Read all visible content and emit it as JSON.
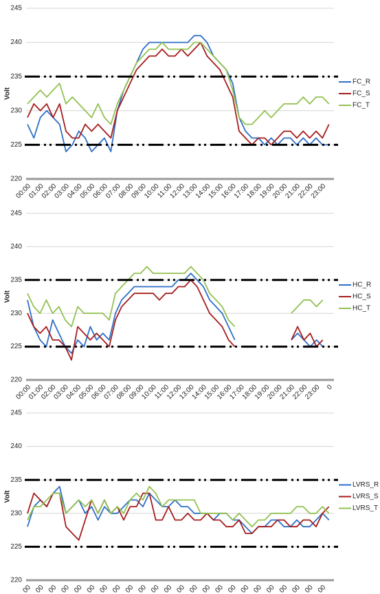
{
  "chart_data": [
    {
      "type": "line",
      "y_label": "Volt",
      "ylim": [
        220,
        245
      ],
      "yticks": [
        220,
        225,
        230,
        235,
        240,
        245
      ],
      "hlines": [
        225,
        235
      ],
      "grid": true,
      "legend": "right",
      "categories": [
        "00:00",
        null,
        "01:00",
        null,
        "02:00",
        null,
        "03:00",
        null,
        "04:00",
        null,
        "05:00",
        null,
        "06:00",
        null,
        "07:00",
        null,
        "08:00",
        null,
        "09:00",
        null,
        "10:00",
        null,
        "11:00",
        null,
        "12:00",
        null,
        "13:00",
        null,
        "14:00",
        null,
        "15:00",
        null,
        "16:00",
        null,
        "17:00",
        null,
        "18:00",
        null,
        "19:00",
        null,
        "20:00",
        null,
        "21:00",
        null,
        "22:00",
        null,
        "23:00",
        null
      ],
      "series": [
        {
          "name": "FC_R",
          "color": "#2e6fc7",
          "values": [
            228,
            226,
            229,
            230,
            229,
            228,
            224,
            225,
            227,
            226,
            224,
            225,
            226,
            224,
            230,
            233,
            235,
            237,
            239,
            240,
            240,
            240,
            240,
            240,
            240,
            240,
            241,
            241,
            240,
            238,
            237,
            236,
            234,
            229,
            227,
            226,
            226,
            225,
            226,
            225,
            226,
            226,
            225,
            226,
            225,
            226,
            225,
            225
          ]
        },
        {
          "name": "FC_S",
          "color": "#a51c1c",
          "values": [
            229,
            231,
            230,
            231,
            229,
            231,
            227,
            226,
            226,
            228,
            227,
            228,
            227,
            226,
            230,
            232,
            234,
            236,
            237,
            238,
            238,
            239,
            238,
            238,
            239,
            238,
            239,
            240,
            238,
            237,
            236,
            234,
            232,
            227,
            226,
            225,
            226,
            226,
            225,
            226,
            227,
            227,
            226,
            227,
            226,
            227,
            226,
            228
          ]
        },
        {
          "name": "FC_T",
          "color": "#92c151",
          "values": [
            231,
            232,
            233,
            232,
            233,
            234,
            231,
            232,
            231,
            230,
            229,
            231,
            229,
            228,
            231,
            233,
            235,
            237,
            238,
            239,
            239,
            240,
            239,
            239,
            239,
            239,
            240,
            240,
            239,
            238,
            237,
            236,
            233,
            229,
            228,
            228,
            229,
            230,
            229,
            230,
            231,
            231,
            231,
            232,
            231,
            232,
            232,
            231
          ]
        }
      ]
    },
    {
      "type": "line",
      "y_label": "Volt",
      "ylim": [
        220,
        245
      ],
      "yticks": [
        220,
        225,
        230,
        235,
        240,
        245
      ],
      "hlines": [
        225,
        235
      ],
      "grid": true,
      "legend": "right",
      "categories": [
        "00:00",
        null,
        "01:00",
        null,
        "02:00",
        null,
        "03:00",
        null,
        "04:00",
        null,
        "05:00",
        null,
        "06:00",
        null,
        "07:00",
        null,
        "08:00",
        null,
        "09:00",
        null,
        "10:00",
        null,
        "11:00",
        null,
        "12:00",
        null,
        "13:00",
        null,
        "14:00",
        null,
        "15:00",
        null,
        "16:00",
        null,
        "17:00",
        null,
        "18:00",
        null,
        "19:00",
        null,
        "20:00",
        null,
        "21:00",
        null,
        "22:00",
        null,
        "23:00",
        null,
        "0"
      ],
      "series": [
        {
          "name": "HC_R",
          "color": "#2e6fc7",
          "values": [
            232,
            228,
            226,
            225,
            229,
            227,
            225,
            224,
            226,
            225,
            228,
            226,
            227,
            226,
            230,
            232,
            233,
            234,
            234,
            234,
            234,
            234,
            234,
            234,
            235,
            235,
            236,
            235,
            234,
            232,
            231,
            230,
            228,
            226,
            null,
            null,
            null,
            null,
            null,
            null,
            null,
            null,
            226,
            227,
            226,
            225,
            226,
            225,
            null
          ]
        },
        {
          "name": "HC_S",
          "color": "#a51c1c",
          "values": [
            230,
            228,
            227,
            228,
            226,
            226,
            225,
            223,
            228,
            227,
            226,
            227,
            226,
            225,
            229,
            231,
            232,
            233,
            233,
            233,
            233,
            232,
            233,
            233,
            234,
            234,
            235,
            234,
            232,
            230,
            229,
            228,
            226,
            225,
            null,
            null,
            null,
            null,
            null,
            null,
            null,
            null,
            226,
            228,
            226,
            227,
            225,
            226,
            null
          ]
        },
        {
          "name": "HC_T",
          "color": "#92c151",
          "values": [
            233,
            231,
            230,
            232,
            230,
            231,
            229,
            228,
            231,
            230,
            230,
            230,
            230,
            229,
            233,
            234,
            235,
            236,
            236,
            237,
            236,
            236,
            236,
            236,
            236,
            236,
            237,
            236,
            235,
            233,
            232,
            231,
            229,
            228,
            null,
            null,
            null,
            null,
            null,
            null,
            null,
            null,
            230,
            231,
            232,
            232,
            231,
            232,
            null
          ]
        }
      ]
    },
    {
      "type": "line",
      "y_label": "Volt",
      "ylim": [
        220,
        245
      ],
      "yticks": [
        220,
        225,
        230,
        235,
        240,
        245
      ],
      "hlines": [
        225,
        235
      ],
      "grid": true,
      "legend": "right",
      "categories": [
        "00",
        null,
        "00",
        null,
        "00",
        null,
        "00",
        null,
        "00",
        null,
        "00",
        null,
        "00",
        null,
        "00",
        null,
        "00",
        null,
        "00",
        null,
        "00",
        null,
        "00",
        null,
        "00",
        null,
        "00",
        null,
        "00",
        null,
        "00",
        null,
        "00",
        null,
        "00",
        null,
        "00",
        null,
        "00",
        null,
        "00",
        null,
        "00",
        null,
        "00",
        null,
        "00",
        null
      ],
      "series": [
        {
          "name": "LVRS_R",
          "color": "#2e6fc7",
          "values": [
            228,
            231,
            232,
            231,
            233,
            234,
            230,
            231,
            232,
            230,
            231,
            229,
            231,
            230,
            230,
            231,
            232,
            232,
            231,
            233,
            232,
            231,
            231,
            232,
            231,
            231,
            230,
            230,
            230,
            229,
            230,
            230,
            229,
            229,
            228,
            227,
            228,
            228,
            229,
            229,
            228,
            228,
            229,
            228,
            228,
            229,
            230,
            229
          ]
        },
        {
          "name": "LVRS_S",
          "color": "#a51c1c",
          "values": [
            230,
            233,
            232,
            231,
            233,
            233,
            228,
            227,
            226,
            229,
            232,
            230,
            232,
            230,
            231,
            229,
            231,
            231,
            233,
            233,
            229,
            229,
            231,
            229,
            229,
            230,
            229,
            229,
            230,
            229,
            229,
            228,
            228,
            229,
            227,
            227,
            228,
            228,
            228,
            229,
            229,
            228,
            228,
            229,
            229,
            228,
            230,
            231
          ]
        },
        {
          "name": "LVRS_T",
          "color": "#92c151",
          "values": [
            229,
            231,
            231,
            232,
            233,
            233,
            230,
            231,
            232,
            231,
            232,
            230,
            232,
            230,
            231,
            230,
            232,
            233,
            232,
            234,
            233,
            231,
            232,
            232,
            232,
            232,
            232,
            230,
            230,
            230,
            230,
            230,
            229,
            230,
            229,
            228,
            229,
            229,
            230,
            230,
            230,
            230,
            231,
            231,
            230,
            230,
            231,
            230
          ]
        }
      ]
    }
  ]
}
